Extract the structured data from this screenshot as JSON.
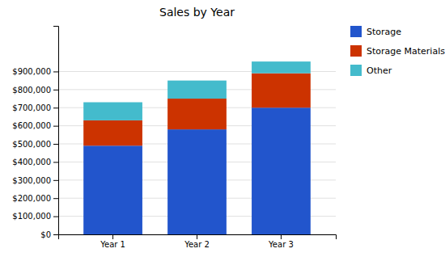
{
  "chart_data": {
    "type": "bar",
    "title": "Sales by Year",
    "categories": [
      "Year 1",
      "Year 2",
      "Year 3"
    ],
    "series": [
      {
        "name": "Storage",
        "color": "#2255cc",
        "values": [
          490000,
          580000,
          700000
        ]
      },
      {
        "name": "Storage Materials",
        "color": "#cc3300",
        "values": [
          140000,
          170000,
          190000
        ]
      },
      {
        "name": "Other",
        "color": "#44bbcc",
        "values": [
          100000,
          100000,
          65000
        ]
      }
    ],
    "stacked": true,
    "ylim": [
      0,
      1152000
    ],
    "yticks": [
      {
        "value": 0,
        "label": "$0"
      },
      {
        "value": 100000,
        "label": "$100,000"
      },
      {
        "value": 200000,
        "label": "$200,000"
      },
      {
        "value": 300000,
        "label": "$300,000"
      },
      {
        "value": 400000,
        "label": "$400,000"
      },
      {
        "value": 500000,
        "label": "$500,000"
      },
      {
        "value": 600000,
        "label": "$600,000"
      },
      {
        "value": 700000,
        "label": "$700,000"
      },
      {
        "value": 800000,
        "label": "$800,000"
      },
      {
        "value": 900000,
        "label": "$900,000"
      }
    ],
    "grid": true,
    "legend": "right"
  }
}
